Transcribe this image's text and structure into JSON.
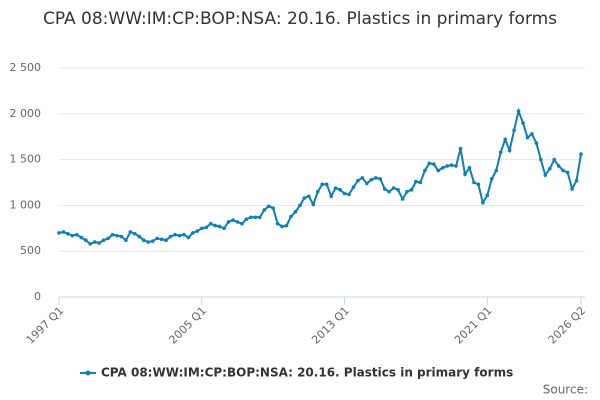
{
  "chart_data": {
    "type": "line",
    "title": "CPA 08:WW:IM:CP:BOP:NSA: 20.16. Plastics in primary forms",
    "source": "Source:",
    "categories": [
      "1997 Q1",
      null,
      null,
      null,
      null,
      null,
      null,
      null,
      null,
      null,
      null,
      null,
      null,
      null,
      null,
      null,
      null,
      null,
      null,
      null,
      null,
      null,
      null,
      null,
      null,
      null,
      null,
      null,
      null,
      null,
      null,
      null,
      "2005 Q1",
      null,
      null,
      null,
      null,
      null,
      null,
      null,
      null,
      null,
      null,
      null,
      null,
      null,
      null,
      null,
      null,
      null,
      null,
      null,
      null,
      null,
      null,
      null,
      null,
      null,
      null,
      null,
      null,
      null,
      null,
      null,
      "2013 Q1",
      null,
      null,
      null,
      null,
      null,
      null,
      null,
      null,
      null,
      null,
      null,
      null,
      null,
      null,
      null,
      null,
      null,
      null,
      null,
      null,
      null,
      null,
      null,
      null,
      null,
      null,
      null,
      null,
      null,
      null,
      null,
      "2021 Q1",
      null,
      null,
      null,
      null,
      null,
      null,
      null,
      null,
      null,
      null,
      null,
      null,
      null,
      null,
      null,
      null,
      null,
      null,
      null,
      null,
      "2026 Q2"
    ],
    "series": [
      {
        "name": "CPA 08:WW:IM:CP:BOP:NSA: 20.16. Plastics in primary forms",
        "color": "#0f7fb4",
        "values": [
          700,
          710,
          690,
          670,
          680,
          650,
          620,
          580,
          600,
          590,
          620,
          640,
          680,
          670,
          660,
          620,
          710,
          690,
          660,
          620,
          600,
          610,
          640,
          630,
          620,
          660,
          680,
          670,
          680,
          650,
          700,
          720,
          750,
          760,
          800,
          780,
          770,
          750,
          820,
          840,
          820,
          800,
          850,
          870,
          870,
          870,
          950,
          990,
          970,
          800,
          770,
          780,
          880,
          930,
          1000,
          1080,
          1100,
          1010,
          1150,
          1230,
          1230,
          1100,
          1190,
          1170,
          1130,
          1120,
          1200,
          1270,
          1300,
          1240,
          1280,
          1300,
          1290,
          1180,
          1150,
          1190,
          1170,
          1070,
          1150,
          1170,
          1260,
          1250,
          1380,
          1460,
          1450,
          1380,
          1410,
          1430,
          1440,
          1430,
          1620,
          1340,
          1410,
          1250,
          1230,
          1030,
          1110,
          1290,
          1380,
          1580,
          1720,
          1600,
          1820,
          2030,
          1900,
          1740,
          1780,
          1680,
          1500,
          1330,
          1400,
          1500,
          1430,
          1380,
          1360,
          1180,
          1270,
          1560
        ]
      }
    ],
    "ylim": [
      0,
      2500
    ],
    "yticks": [
      0,
      500,
      {
        "value": 1000,
        "label": "1 000"
      },
      {
        "value": 1500,
        "label": "1 500"
      },
      {
        "value": 2000,
        "label": "2 000"
      },
      {
        "value": 2500,
        "label": "2 500"
      }
    ],
    "grid": true
  }
}
